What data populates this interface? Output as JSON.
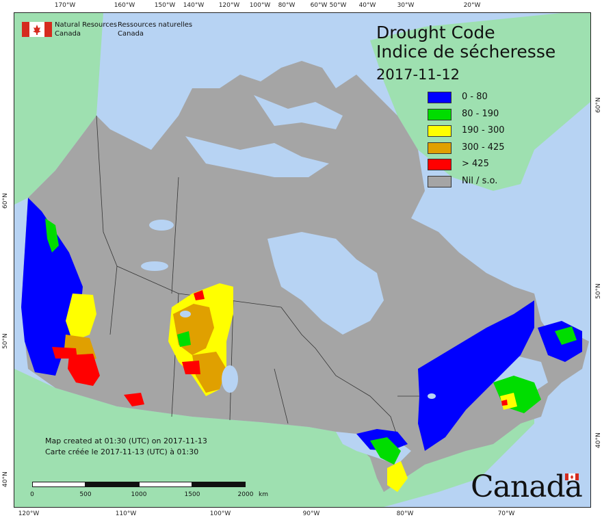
{
  "agency": {
    "name_en_line1": "Natural Resources",
    "name_en_line2": "Canada",
    "name_fr_line1": "Ressources naturelles",
    "name_fr_line2": "Canada"
  },
  "title": {
    "en": "Drought Code",
    "fr": "Indice de sécheresse",
    "date": "2017-11-12"
  },
  "legend": [
    {
      "label": "0 - 80",
      "color": "#0000ff"
    },
    {
      "label": "80 - 190",
      "color": "#00dd00"
    },
    {
      "label": "190 - 300",
      "color": "#ffff00"
    },
    {
      "label": "300 - 425",
      "color": "#e0a000"
    },
    {
      "label": "> 425",
      "color": "#ff0000"
    },
    {
      "label": "Nil / s.o.",
      "color": "#a5a5a5"
    }
  ],
  "credit": {
    "en": "Map created at 01:30 (UTC) on 2017-11-13",
    "fr": "Carte créée le 2017-11-13 (UTC) à 01:30"
  },
  "scale": {
    "labels": [
      "0",
      "500",
      "1000",
      "1500",
      "2000"
    ],
    "unit": "km"
  },
  "wordmark": "Canada",
  "graticule": {
    "top": [
      "170°W",
      "160°W",
      "150°W",
      "140°W",
      "120°W",
      "100°W",
      "80°W",
      "60°W",
      "50°W",
      "40°W",
      "30°W",
      "20°W"
    ],
    "bottom": [
      "120°W",
      "110°W",
      "100°W",
      "90°W",
      "80°W",
      "70°W"
    ],
    "left": [
      "60°N",
      "50°N",
      "40°N"
    ],
    "right": [
      "60°N",
      "50°N",
      "40°N"
    ]
  },
  "colors": {
    "water": "#b7d3f3",
    "land_outside": "#9ee0b0",
    "nil": "#a5a5a5",
    "lake": "#b7d3f3"
  }
}
